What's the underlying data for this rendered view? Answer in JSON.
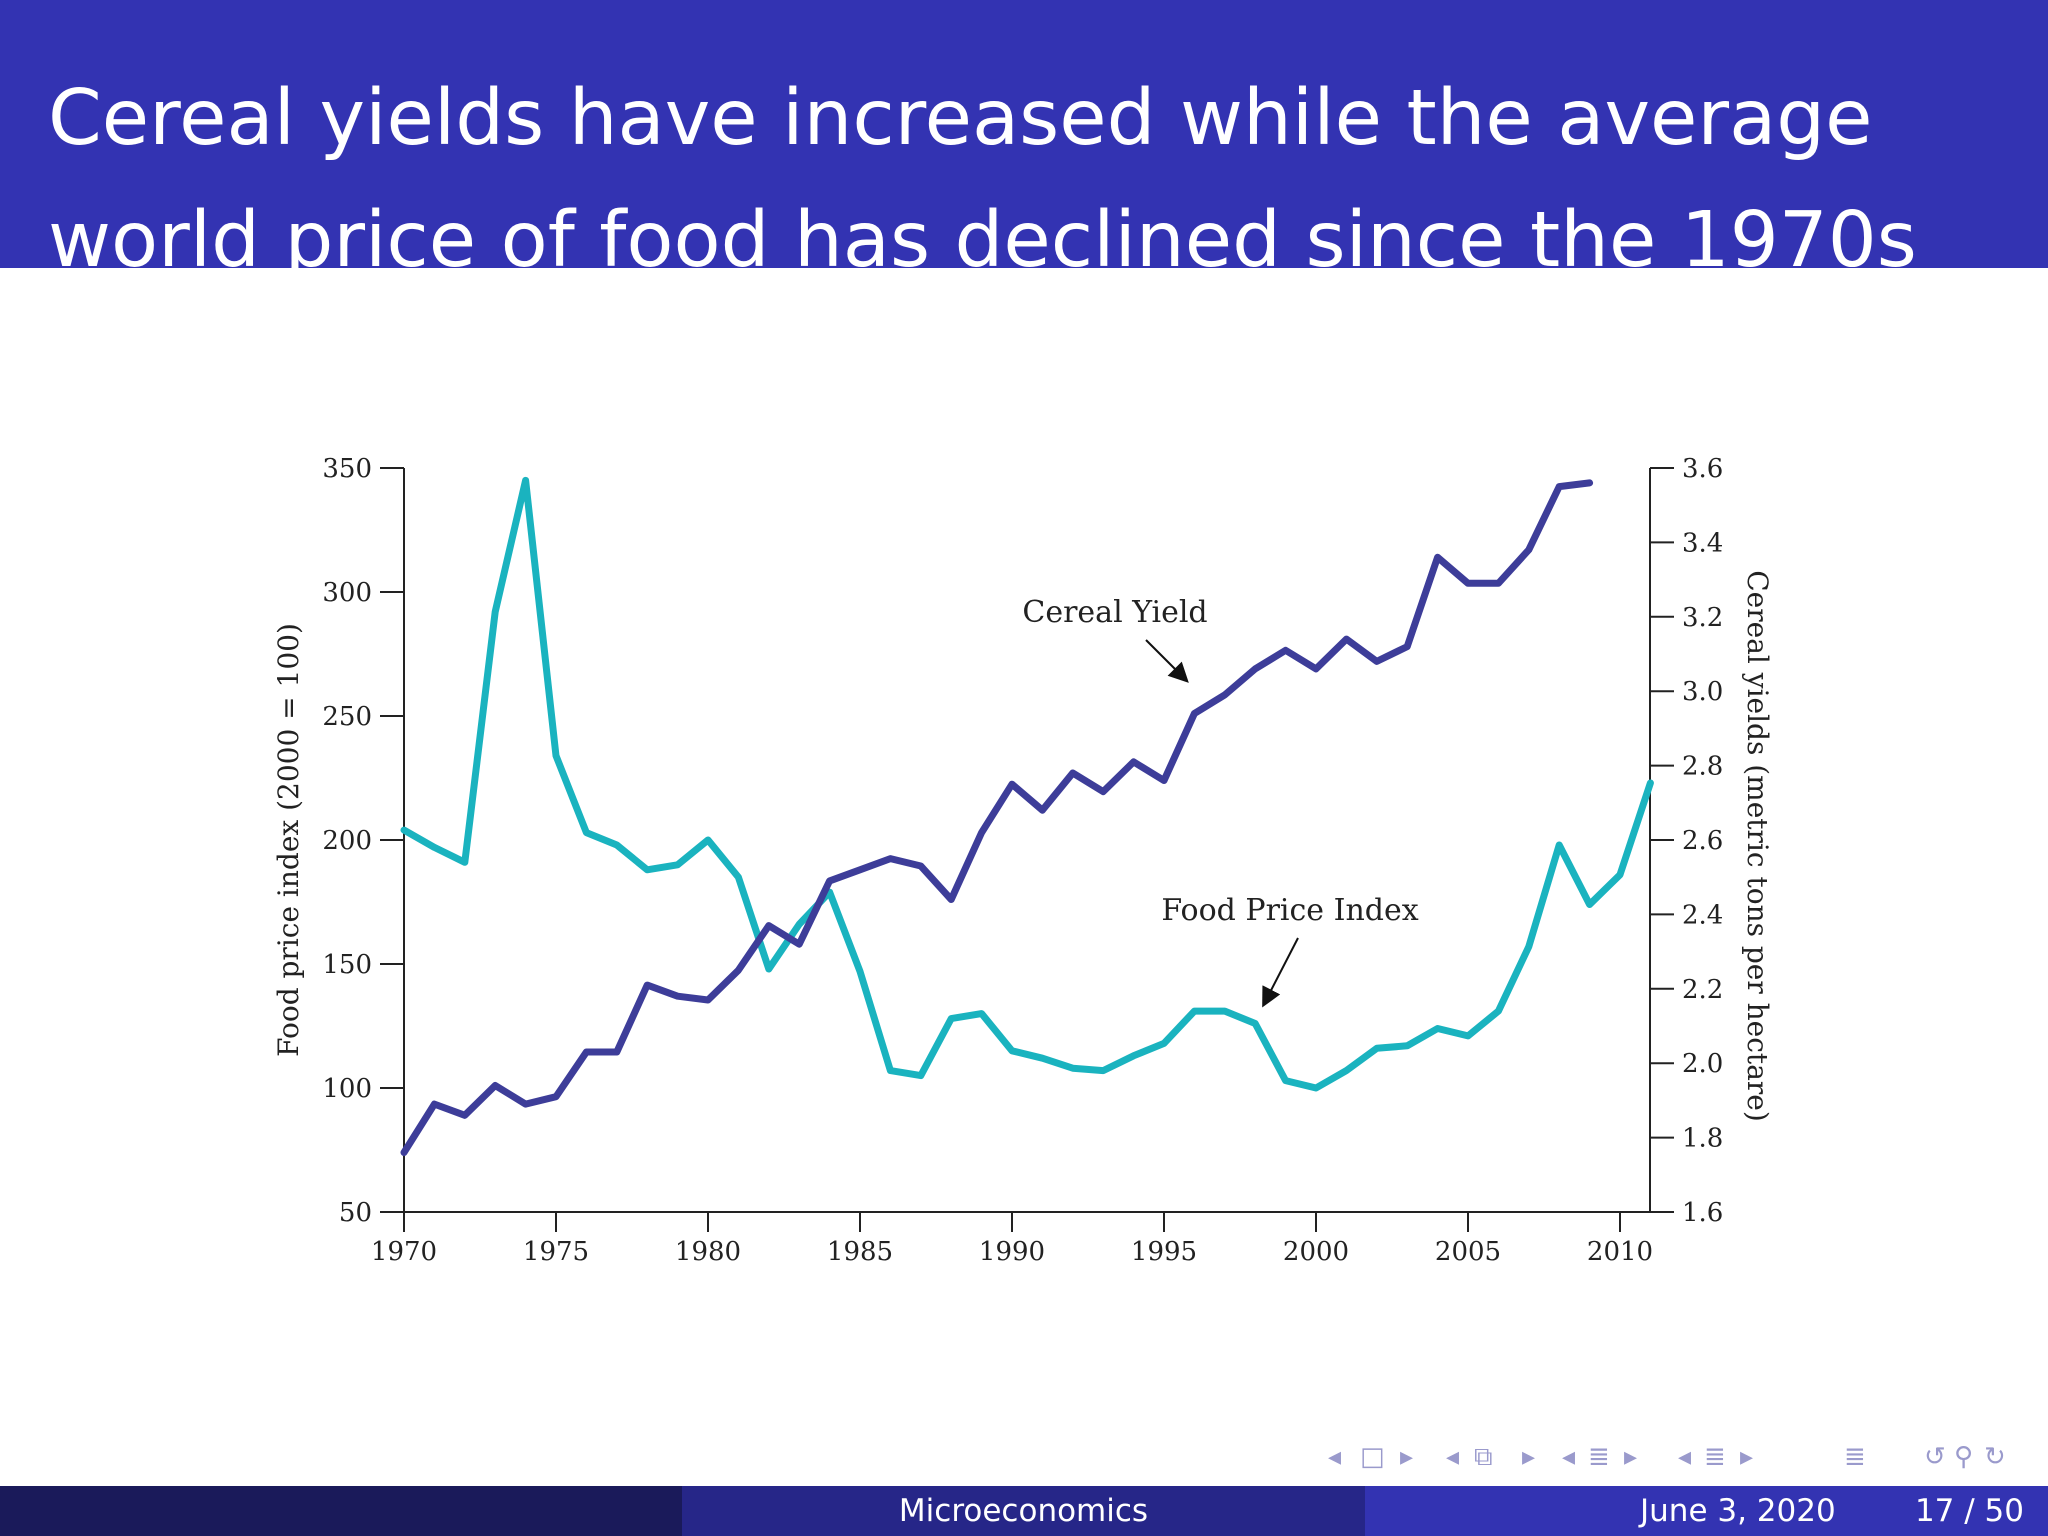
{
  "slide": {
    "title": "Cereal yields have increased while the average world price of food has declined since the 1970s"
  },
  "footer": {
    "center": "Microeconomics",
    "date": "June 3, 2020",
    "page": "17 / 50"
  },
  "colors": {
    "title_bar": "#3333b2",
    "food_price_series": "#1ab3bf",
    "cereal_yield_series": "#3d3d99",
    "footer_dark": "#1a1a5a",
    "footer_mid": "#262688",
    "footer_light": "#3333b2"
  },
  "nav_icons": [
    "nav-prev-slide-icon",
    "nav-frame-icon",
    "nav-next-slide-icon",
    "nav-prev-subsection-icon",
    "nav-section-icon",
    "nav-next-subsection-icon",
    "nav-prev-section-icon",
    "nav-subsection-icon",
    "nav-next-section-icon",
    "nav-toc-icon",
    "nav-undo-icon",
    "nav-search-icon",
    "nav-redo-icon"
  ],
  "chart_data": {
    "type": "line",
    "title": "",
    "xlabel": "",
    "ylabel": "Food price index (2000 = 100)",
    "ylabel_right": "Cereal yields (metric tons per hectare)",
    "xlim": [
      1970,
      2011
    ],
    "ylim": [
      50,
      350
    ],
    "ylim_right": [
      1.6,
      3.6
    ],
    "x_ticks": [
      1970,
      1975,
      1980,
      1985,
      1990,
      1995,
      2000,
      2005,
      2010
    ],
    "y_ticks": [
      50,
      100,
      150,
      200,
      250,
      300,
      350
    ],
    "y_ticks_right": [
      1.6,
      1.8,
      2.0,
      2.2,
      2.4,
      2.6,
      2.8,
      3.0,
      3.2,
      3.4,
      3.6
    ],
    "grid": false,
    "legend": "none",
    "annotations": [
      {
        "text": "Cereal Yield",
        "series": "Cereal Yield",
        "x": 1997,
        "y": 3.06
      },
      {
        "text": "Food Price Index",
        "series": "Food Price Index",
        "x": 1997.4,
        "y": 113
      }
    ],
    "series": [
      {
        "name": "Food Price Index",
        "axis": "left",
        "x": [
          1970,
          1971,
          1972,
          1973,
          1974,
          1975,
          1976,
          1977,
          1978,
          1979,
          1980,
          1981,
          1982,
          1983,
          1984,
          1985,
          1986,
          1987,
          1988,
          1989,
          1990,
          1991,
          1992,
          1993,
          1994,
          1995,
          1996,
          1997,
          1998,
          1999,
          2000,
          2001,
          2002,
          2003,
          2004,
          2005,
          2006,
          2007,
          2008,
          2009,
          2010,
          2011
        ],
        "values": [
          204,
          197,
          191,
          292,
          345,
          234,
          203,
          198,
          188,
          190,
          200,
          185,
          148,
          166,
          179,
          147,
          107,
          105,
          128,
          130,
          115,
          112,
          108,
          107,
          113,
          118,
          131,
          131,
          126,
          103,
          100,
          107,
          116,
          117,
          124,
          121,
          131,
          157,
          198,
          174,
          186,
          223
        ]
      },
      {
        "name": "Cereal Yield",
        "axis": "right",
        "x": [
          1970,
          1971,
          1972,
          1973,
          1974,
          1975,
          1976,
          1977,
          1978,
          1979,
          1980,
          1981,
          1982,
          1983,
          1984,
          1985,
          1986,
          1987,
          1988,
          1989,
          1990,
          1991,
          1992,
          1993,
          1994,
          1995,
          1996,
          1997,
          1998,
          1999,
          2000,
          2001,
          2002,
          2003,
          2004,
          2005,
          2006,
          2007,
          2008,
          2009
        ],
        "values": [
          1.76,
          1.89,
          1.86,
          1.94,
          1.89,
          1.91,
          2.03,
          2.03,
          2.21,
          2.18,
          2.17,
          2.25,
          2.37,
          2.32,
          2.49,
          2.52,
          2.55,
          2.53,
          2.44,
          2.62,
          2.75,
          2.68,
          2.78,
          2.73,
          2.81,
          2.76,
          2.94,
          2.99,
          3.06,
          3.11,
          3.06,
          3.14,
          3.08,
          3.12,
          3.36,
          3.29,
          3.29,
          3.38,
          3.55,
          3.56
        ]
      }
    ]
  }
}
